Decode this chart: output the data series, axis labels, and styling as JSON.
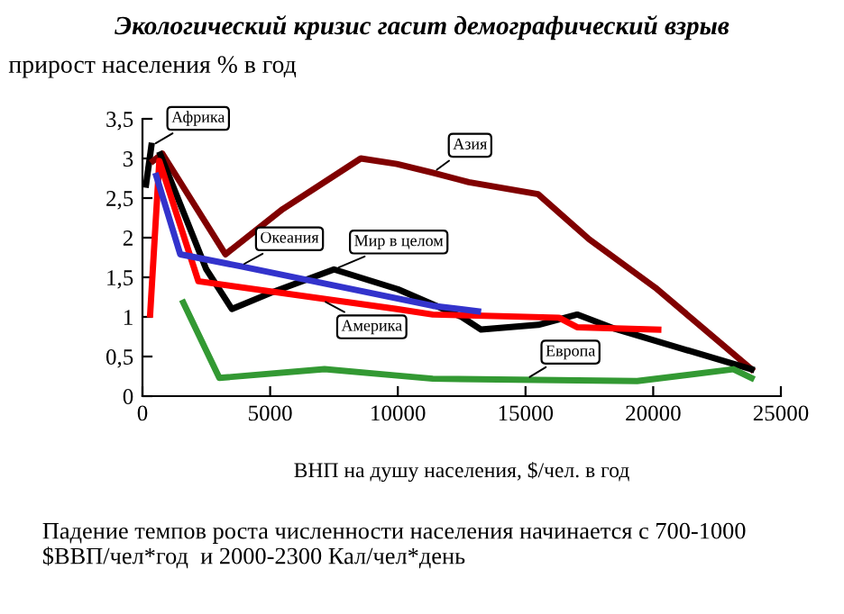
{
  "chart_data": {
    "type": "line",
    "title": "Экологический кризис гасит демографический взрыв",
    "ylabel": "прирост населения % в год",
    "xlabel": "ВНП на душу населения, $/чел. в год",
    "xlim": [
      0,
      25000
    ],
    "xticks": [
      0,
      5000,
      10000,
      15000,
      20000,
      25000
    ],
    "ylim": [
      0,
      3.5
    ],
    "yticks": [
      {
        "value": 0,
        "label": "0"
      },
      {
        "value": 0.5,
        "label": "0,5"
      },
      {
        "value": 1,
        "label": "1"
      },
      {
        "value": 1.5,
        "label": "1,5"
      },
      {
        "value": 2,
        "label": "2"
      },
      {
        "value": 2.5,
        "label": "2,5"
      },
      {
        "value": 3,
        "label": "3"
      },
      {
        "value": 3.5,
        "label": "3,5"
      }
    ],
    "grid": false,
    "legend": false,
    "marker": "none",
    "line_style": "solid",
    "series": [
      {
        "color": "#000000",
        "x": [
          140,
          350
        ],
        "values": [
          2.67,
          3.16
        ]
      },
      {
        "color": "#800000",
        "x": [
          420,
          780,
          3250,
          5490,
          8550,
          9960,
          11370,
          12780,
          15490,
          17490,
          20080,
          23850
        ],
        "values": [
          2.97,
          3.06,
          1.79,
          2.36,
          3.0,
          2.93,
          2.82,
          2.7,
          2.55,
          1.98,
          1.37,
          0.34
        ]
      },
      {
        "color": "#000000",
        "x": [
          700,
          2500,
          3500,
          5000,
          7500,
          10000,
          12500,
          13260,
          15500,
          17020,
          18500,
          23850
        ],
        "values": [
          3.05,
          1.6,
          1.1,
          1.3,
          1.6,
          1.35,
          1.0,
          0.84,
          0.9,
          1.03,
          0.85,
          0.34
        ]
      },
      {
        "color": "#ff0000",
        "x": [
          300,
          660,
          2190,
          9960,
          11370,
          16310,
          17020,
          20200
        ],
        "values": [
          1.03,
          2.97,
          1.45,
          1.1,
          1.03,
          0.99,
          0.87,
          0.84
        ]
      },
      {
        "color": "#3333cc",
        "x": [
          540,
          1480,
          3820,
          11370,
          13140
        ],
        "values": [
          2.78,
          1.79,
          1.64,
          1.14,
          1.07
        ]
      },
      {
        "color": "#339933",
        "x": [
          1600,
          3010,
          7130,
          9960,
          11370,
          19370,
          23140,
          23850
        ],
        "values": [
          1.18,
          0.23,
          0.34,
          0.26,
          0.22,
          0.19,
          0.34,
          0.23
        ]
      }
    ],
    "annotations": [
      {
        "text": "Африка",
        "x": 350,
        "y": 3.16
      },
      {
        "text": "Азия",
        "x": 11370,
        "y": 2.82
      },
      {
        "text": "Океания",
        "x": 3820,
        "y": 1.64
      },
      {
        "text": "Мир в целом",
        "x": 7500,
        "y": 1.6
      },
      {
        "text": "Америка",
        "x": 7000,
        "y": 1.22
      },
      {
        "text": "Европа",
        "x": 15000,
        "y": 0.21
      },
      "Падение темпов роста численности населения начинается с 700-1000 $ВВП/чел*год  и 2000-2300 Кал/чел*день"
    ]
  }
}
